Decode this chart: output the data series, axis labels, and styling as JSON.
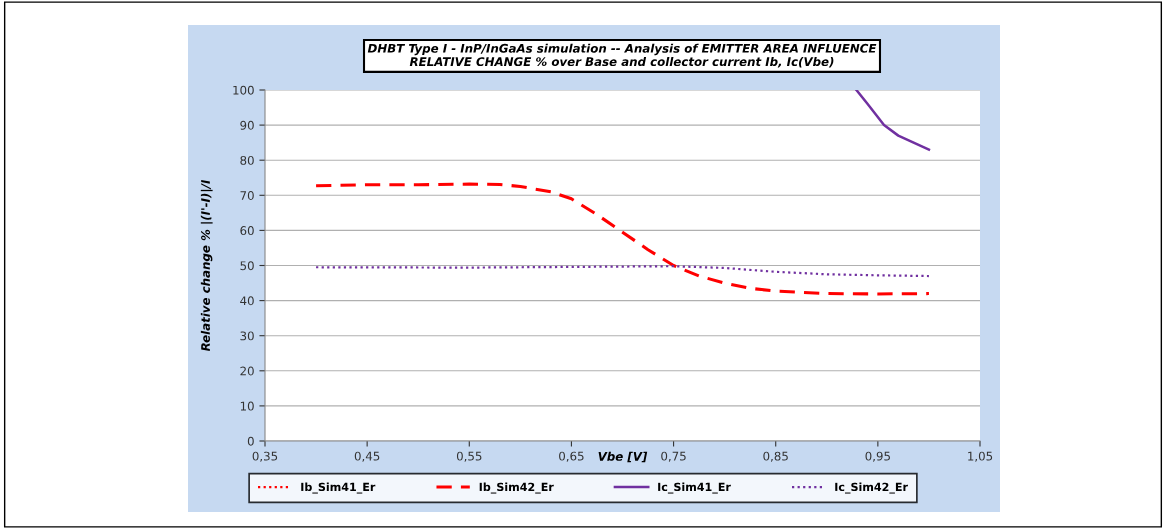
{
  "chart_data": {
    "type": "line",
    "title": "DHBT Type I - InP/InGaAs simulation -- Analysis of EMITTER AREA INFLUENCE\nRELATIVE CHANGE % over Base and collector current Ib, Ic(Vbe)",
    "xlabel": "Vbe [V]",
    "ylabel": "Relative change % |(I'-I)|/I",
    "xlim": [
      0.35,
      1.05
    ],
    "xticks": [
      {
        "value": 0.35,
        "label": "0,35"
      },
      {
        "value": 0.45,
        "label": "0,45"
      },
      {
        "value": 0.55,
        "label": "0,55"
      },
      {
        "value": 0.65,
        "label": "0,65"
      },
      {
        "value": 0.75,
        "label": "0,75"
      },
      {
        "value": 0.85,
        "label": "0,85"
      },
      {
        "value": 0.95,
        "label": "0,95"
      },
      {
        "value": 1.05,
        "label": "1,05"
      }
    ],
    "ylim": [
      0,
      100
    ],
    "yticks": [
      0,
      10,
      20,
      30,
      40,
      50,
      60,
      70,
      80,
      90,
      100
    ],
    "grid": "y",
    "legend": "bottom",
    "series": [
      {
        "name": "Ib_Sim41_Er",
        "color": "#ff0000",
        "line_style": "dotted"
      },
      {
        "name": "Ib_Sim42_Er",
        "color": "#ff0000",
        "line_style": "dashed",
        "x": [
          0.4,
          0.45,
          0.5,
          0.55,
          0.58,
          0.6,
          0.63,
          0.65,
          0.675,
          0.7,
          0.725,
          0.75,
          0.775,
          0.8,
          0.825,
          0.85,
          0.9,
          0.95,
          1.0
        ],
        "values": [
          72.7,
          73,
          73,
          73.2,
          73.1,
          72.5,
          71,
          69,
          64.5,
          59.5,
          54.5,
          50,
          47,
          45,
          43.5,
          42.7,
          42,
          41.9,
          42
        ]
      },
      {
        "name": "Ic_Sim41_Er",
        "color": "#7030a0",
        "line_style": "solid",
        "x": [
          0.929,
          0.94,
          0.956,
          0.97,
          0.985,
          1.0
        ],
        "values": [
          100,
          96,
          90,
          87,
          85,
          83
        ]
      },
      {
        "name": "Ic_Sim42_Er",
        "color": "#7030a0",
        "line_style": "dotted",
        "x": [
          0.4,
          0.55,
          0.65,
          0.75,
          0.8,
          0.85,
          0.9,
          0.95,
          1.0
        ],
        "values": [
          49.5,
          49.4,
          49.6,
          49.8,
          49.3,
          48.2,
          47.5,
          47.2,
          47.0
        ]
      }
    ]
  }
}
